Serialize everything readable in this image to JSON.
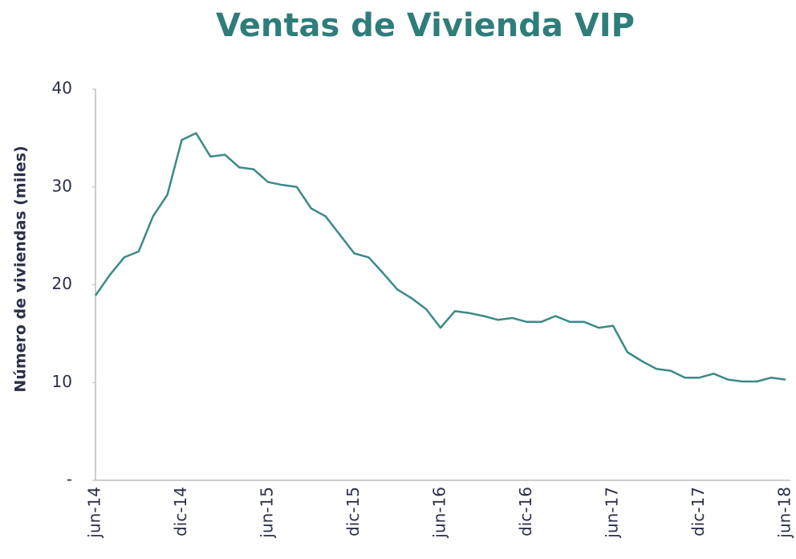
{
  "chart_data": {
    "type": "line",
    "title": "Ventas de Vivienda VIP",
    "y_label": "Número de viviendas (miles)",
    "categories": [
      "jun-14",
      null,
      null,
      null,
      null,
      null,
      "dic-14",
      null,
      null,
      null,
      null,
      null,
      "jun-15",
      null,
      null,
      null,
      null,
      null,
      "dic-15",
      null,
      null,
      null,
      null,
      null,
      "jun-16",
      null,
      null,
      null,
      null,
      null,
      "dic-16",
      null,
      null,
      null,
      null,
      null,
      "jun-17",
      null,
      null,
      null,
      null,
      null,
      "dic-17",
      null,
      null,
      null,
      null,
      null,
      "jun-18"
    ],
    "series": [
      {
        "name": "Ventas",
        "color": "#3a8a87",
        "values": [
          18.9,
          21.0,
          22.8,
          23.4,
          27.0,
          29.2,
          34.8,
          35.5,
          33.1,
          33.3,
          32.0,
          31.8,
          30.5,
          30.2,
          30.0,
          27.8,
          27.0,
          25.1,
          23.2,
          22.8,
          21.2,
          19.5,
          18.6,
          17.5,
          15.6,
          17.3,
          17.1,
          16.8,
          16.4,
          16.6,
          16.2,
          16.2,
          16.8,
          16.2,
          16.2,
          15.6,
          15.8,
          13.1,
          12.2,
          11.4,
          11.2,
          10.5,
          10.5,
          10.9,
          10.3,
          10.1,
          10.1,
          10.5,
          10.3
        ]
      }
    ],
    "ylim": [
      0,
      40
    ],
    "yticks": [
      {
        "value": 0,
        "label": "-"
      },
      10,
      20,
      30,
      40
    ],
    "grid": false
  }
}
